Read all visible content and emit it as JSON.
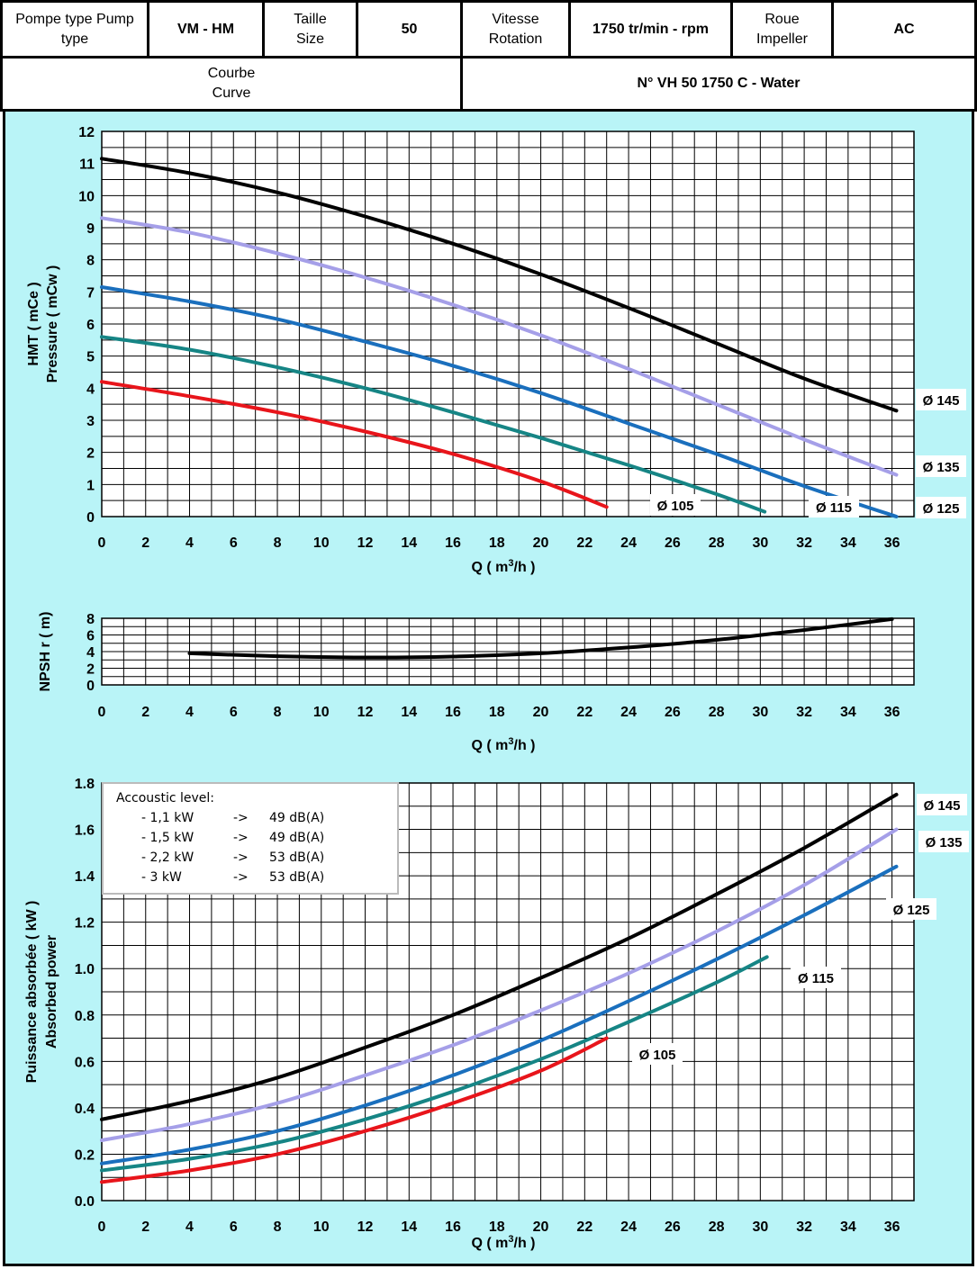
{
  "header": {
    "pump_type_label": "Pompe type Pump type",
    "pump_type_value": "VM - HM",
    "size_label": "Taille Size",
    "size_value": "50",
    "speed_label": "Vitesse Rotation",
    "speed_value": "1750 tr/min - rpm",
    "impeller_label": "Roue Impeller",
    "impeller_value": "AC",
    "curve_label": "Courbe Curve",
    "curve_value": "N° VH 50 1750 C - Water"
  },
  "colors": {
    "panel_bg": "#b9f4f7",
    "d145": "#000000",
    "d135": "#a59fe8",
    "d125": "#1a6fbd",
    "d115": "#168585",
    "d105": "#e8151b"
  },
  "legend": {
    "title": "Accoustic level:",
    "rows": [
      {
        "power": "- 1,1 kW",
        "arrow": "->",
        "level": "49 dB(A)"
      },
      {
        "power": "- 1,5 kW",
        "arrow": "->",
        "level": "49 dB(A)"
      },
      {
        "power": "- 2,2 kW",
        "arrow": "->",
        "level": "53 dB(A)"
      },
      {
        "power": "- 3 kW",
        "arrow": "->",
        "level": "53 dB(A)"
      }
    ]
  },
  "chart_data": [
    {
      "type": "line",
      "name": "head",
      "ylabel_1": "HMT ( mCe )",
      "ylabel_2": "Pressure ( mCw )",
      "xlabel": "Q ( m³/h )",
      "xlim": [
        0,
        37
      ],
      "ylim": [
        0,
        12
      ],
      "x_ticks": [
        0,
        2,
        4,
        6,
        8,
        10,
        12,
        14,
        16,
        18,
        20,
        22,
        24,
        26,
        28,
        30,
        32,
        34,
        36
      ],
      "y_ticks": [
        0,
        1,
        2,
        3,
        4,
        5,
        6,
        7,
        8,
        9,
        10,
        11,
        12
      ],
      "grid": true,
      "series": [
        {
          "name": "Ø 145",
          "color": "#000000",
          "points": [
            [
              0,
              11.15
            ],
            [
              4,
              10.7
            ],
            [
              8,
              10.1
            ],
            [
              12,
              9.35
            ],
            [
              16,
              8.5
            ],
            [
              20,
              7.55
            ],
            [
              24,
              6.5
            ],
            [
              28,
              5.4
            ],
            [
              32,
              4.3
            ],
            [
              36.2,
              3.3
            ]
          ]
        },
        {
          "name": "Ø 135",
          "color": "#a59fe8",
          "points": [
            [
              0,
              9.3
            ],
            [
              4,
              8.85
            ],
            [
              8,
              8.2
            ],
            [
              12,
              7.45
            ],
            [
              16,
              6.6
            ],
            [
              20,
              5.65
            ],
            [
              24,
              4.6
            ],
            [
              28,
              3.5
            ],
            [
              32,
              2.4
            ],
            [
              36.2,
              1.3
            ]
          ]
        },
        {
          "name": "Ø 125",
          "color": "#1a6fbd",
          "points": [
            [
              0,
              7.15
            ],
            [
              4,
              6.7
            ],
            [
              8,
              6.15
            ],
            [
              12,
              5.45
            ],
            [
              16,
              4.7
            ],
            [
              20,
              3.85
            ],
            [
              24,
              2.9
            ],
            [
              28,
              1.95
            ],
            [
              32,
              0.95
            ],
            [
              36.2,
              0.0
            ]
          ]
        },
        {
          "name": "Ø 115",
          "color": "#168585",
          "points": [
            [
              0,
              5.6
            ],
            [
              4,
              5.2
            ],
            [
              8,
              4.65
            ],
            [
              12,
              4.0
            ],
            [
              16,
              3.25
            ],
            [
              20,
              2.45
            ],
            [
              24,
              1.6
            ],
            [
              28,
              0.7
            ],
            [
              30.2,
              0.15
            ]
          ]
        },
        {
          "name": "Ø 105",
          "color": "#e8151b",
          "points": [
            [
              0,
              4.2
            ],
            [
              4,
              3.75
            ],
            [
              8,
              3.25
            ],
            [
              12,
              2.65
            ],
            [
              16,
              1.95
            ],
            [
              20,
              1.1
            ],
            [
              23,
              0.3
            ]
          ]
        }
      ]
    },
    {
      "type": "line",
      "name": "npsh",
      "ylabel": "NPSH r ( m)",
      "xlabel": "Q ( m³/h )",
      "xlim": [
        0,
        37
      ],
      "ylim": [
        0,
        8
      ],
      "x_ticks": [
        0,
        2,
        4,
        6,
        8,
        10,
        12,
        14,
        16,
        18,
        20,
        22,
        24,
        26,
        28,
        30,
        32,
        34,
        36
      ],
      "y_ticks": [
        0,
        2,
        4,
        6,
        8
      ],
      "grid": true,
      "series": [
        {
          "color": "#000000",
          "points": [
            [
              4,
              3.8
            ],
            [
              8,
              3.45
            ],
            [
              12,
              3.3
            ],
            [
              16,
              3.4
            ],
            [
              20,
              3.8
            ],
            [
              24,
              4.5
            ],
            [
              28,
              5.4
            ],
            [
              32,
              6.6
            ],
            [
              36,
              7.9
            ]
          ]
        }
      ]
    },
    {
      "type": "line",
      "name": "power",
      "ylabel_1": "Puissance absorbée ( kW )",
      "ylabel_2": "Absorbed power",
      "xlabel": "Q ( m³/h )",
      "xlim": [
        0,
        37
      ],
      "ylim": [
        0,
        1.8
      ],
      "x_ticks": [
        0,
        2,
        4,
        6,
        8,
        10,
        12,
        14,
        16,
        18,
        20,
        22,
        24,
        26,
        28,
        30,
        32,
        34,
        36
      ],
      "y_ticks": [
        "0.0",
        "0.2",
        "0.4",
        "0.6",
        "0.8",
        "1.0",
        "1.2",
        "1.4",
        "1.6",
        "1.8"
      ],
      "grid": true,
      "series": [
        {
          "name": "Ø 145",
          "color": "#000000",
          "points": [
            [
              0,
              0.35
            ],
            [
              4,
              0.43
            ],
            [
              8,
              0.53
            ],
            [
              12,
              0.66
            ],
            [
              16,
              0.8
            ],
            [
              20,
              0.96
            ],
            [
              24,
              1.13
            ],
            [
              28,
              1.32
            ],
            [
              32,
              1.52
            ],
            [
              36.2,
              1.75
            ]
          ]
        },
        {
          "name": "Ø 135",
          "color": "#a59fe8",
          "points": [
            [
              0,
              0.26
            ],
            [
              4,
              0.33
            ],
            [
              8,
              0.42
            ],
            [
              12,
              0.54
            ],
            [
              16,
              0.67
            ],
            [
              20,
              0.82
            ],
            [
              24,
              0.98
            ],
            [
              28,
              1.16
            ],
            [
              32,
              1.36
            ],
            [
              36.2,
              1.6
            ]
          ]
        },
        {
          "name": "Ø 125",
          "color": "#1a6fbd",
          "points": [
            [
              0,
              0.16
            ],
            [
              4,
              0.22
            ],
            [
              8,
              0.3
            ],
            [
              12,
              0.41
            ],
            [
              16,
              0.54
            ],
            [
              20,
              0.69
            ],
            [
              24,
              0.86
            ],
            [
              28,
              1.04
            ],
            [
              32,
              1.23
            ],
            [
              36.2,
              1.44
            ]
          ]
        },
        {
          "name": "Ø 115",
          "color": "#168585",
          "points": [
            [
              0,
              0.13
            ],
            [
              4,
              0.18
            ],
            [
              8,
              0.25
            ],
            [
              12,
              0.35
            ],
            [
              16,
              0.47
            ],
            [
              20,
              0.61
            ],
            [
              24,
              0.77
            ],
            [
              28,
              0.94
            ],
            [
              30.3,
              1.05
            ]
          ]
        },
        {
          "name": "Ø 105",
          "color": "#e8151b",
          "points": [
            [
              0,
              0.08
            ],
            [
              4,
              0.13
            ],
            [
              8,
              0.2
            ],
            [
              12,
              0.3
            ],
            [
              16,
              0.42
            ],
            [
              20,
              0.56
            ],
            [
              23,
              0.7
            ]
          ]
        }
      ]
    }
  ],
  "labels": {
    "head": [
      "Ø 145",
      "Ø 135",
      "Ø 125",
      "Ø 115",
      "Ø 105"
    ],
    "power": [
      "Ø 145",
      "Ø 135",
      "Ø 125",
      "Ø 115",
      "Ø 105"
    ]
  }
}
